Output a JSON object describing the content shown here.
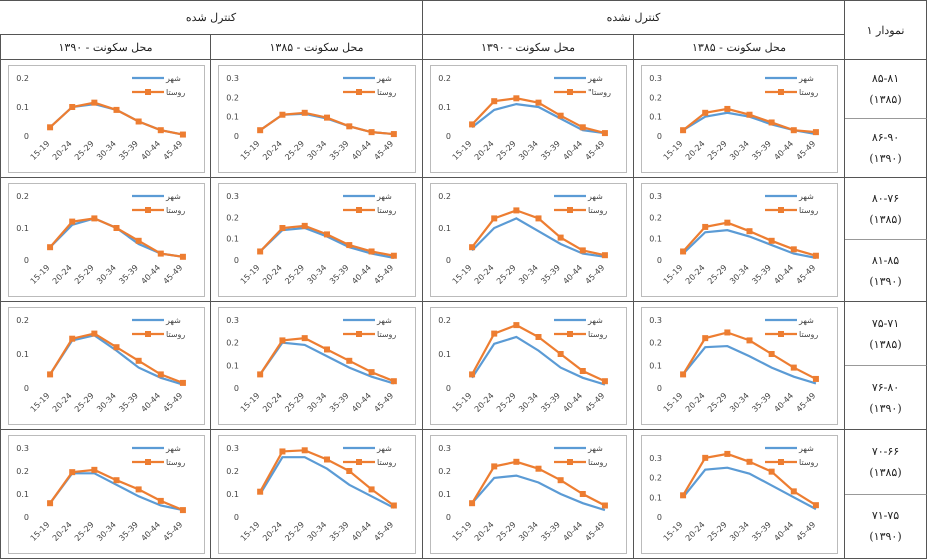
{
  "table": {
    "corner": "نمودار ۱",
    "groups": [
      "کنترل شده",
      "کنترل نشده"
    ],
    "subheaders": [
      "محل سکونت - ۱۳۹۰",
      "محل سکونت - ۱۳۸۵",
      "محل سکونت - ۱۳۹۰",
      "محل سکونت - ۱۳۸۵"
    ],
    "row_labels": [
      [
        "۸۵-۸۱",
        "(۱۳۸۵)"
      ],
      [
        "۸۶-۹۰",
        "(۱۳۹۰)"
      ],
      [
        "۸۰-۷۶",
        "(۱۳۸۵)"
      ],
      [
        "۸۱-۸۵",
        "(۱۳۹۰)"
      ],
      [
        "۷۵-۷۱",
        "(۱۳۸۵)"
      ],
      [
        "۷۶-۸۰",
        "(۱۳۹۰)"
      ],
      [
        "۷۰-۶۶",
        "(۱۳۸۵)"
      ],
      [
        "۷۱-۷۵",
        "(۱۳۹۰)"
      ]
    ]
  },
  "chart_data": [
    {
      "type": "line",
      "categories": [
        "15-19",
        "20-24",
        "25-29",
        "30-34",
        "35-39",
        "40-44",
        "45-49"
      ],
      "ylim": [
        0,
        0.2
      ],
      "yticks": [
        0,
        0.1,
        0.2
      ],
      "series": [
        {
          "name": "شهر",
          "color": "#5b9bd5",
          "values": [
            0.03,
            0.1,
            0.11,
            0.09,
            0.05,
            0.02,
            0.005
          ]
        },
        {
          "name": "روستا",
          "color": "#ed7d31",
          "marker": "square",
          "values": [
            0.03,
            0.1,
            0.115,
            0.09,
            0.05,
            0.02,
            0.005
          ]
        }
      ]
    },
    {
      "type": "line",
      "categories": [
        "15-19",
        "20-24",
        "25-29",
        "30-34",
        "35-39",
        "40-44",
        "45-49"
      ],
      "ylim": [
        0,
        0.3
      ],
      "yticks": [
        0,
        0.1,
        0.2,
        0.3
      ],
      "series": [
        {
          "name": "شهر",
          "color": "#5b9bd5",
          "values": [
            0.03,
            0.11,
            0.115,
            0.09,
            0.05,
            0.02,
            0.01
          ]
        },
        {
          "name": "روستا",
          "color": "#ed7d31",
          "marker": "square",
          "values": [
            0.03,
            0.11,
            0.12,
            0.095,
            0.05,
            0.02,
            0.01
          ]
        }
      ]
    },
    {
      "type": "line",
      "categories": [
        "15-19",
        "20-24",
        "25-29",
        "30-34",
        "35-39",
        "40-44",
        "45-49"
      ],
      "ylim": [
        0,
        0.2
      ],
      "yticks": [
        0,
        0.1,
        0.2
      ],
      "series": [
        {
          "name": "شهر",
          "color": "#5b9bd5",
          "values": [
            0.03,
            0.09,
            0.11,
            0.1,
            0.06,
            0.02,
            0.01
          ]
        },
        {
          "name": "روستا\"",
          "color": "#ed7d31",
          "marker": "square",
          "values": [
            0.04,
            0.12,
            0.13,
            0.115,
            0.07,
            0.03,
            0.01
          ]
        }
      ]
    },
    {
      "type": "line",
      "categories": [
        "15-19",
        "20-24",
        "25-29",
        "30-34",
        "35-39",
        "40-44",
        "45-49"
      ],
      "ylim": [
        0,
        0.3
      ],
      "yticks": [
        0,
        0.1,
        0.2,
        0.3
      ],
      "series": [
        {
          "name": "شهر",
          "color": "#5b9bd5",
          "values": [
            0.03,
            0.1,
            0.12,
            0.1,
            0.06,
            0.03,
            0.01
          ]
        },
        {
          "name": "روستا",
          "color": "#ed7d31",
          "marker": "square",
          "values": [
            0.03,
            0.12,
            0.14,
            0.11,
            0.07,
            0.03,
            0.02
          ]
        }
      ]
    },
    {
      "type": "line",
      "categories": [
        "15-19",
        "20-24",
        "25-29",
        "30-34",
        "35-39",
        "40-44",
        "45-49"
      ],
      "ylim": [
        0,
        0.2
      ],
      "yticks": [
        0,
        0.1,
        0.2
      ],
      "series": [
        {
          "name": "شهر",
          "color": "#5b9bd5",
          "values": [
            0.04,
            0.11,
            0.13,
            0.1,
            0.05,
            0.02,
            0.01
          ]
        },
        {
          "name": "روستا",
          "color": "#ed7d31",
          "marker": "square",
          "values": [
            0.04,
            0.12,
            0.13,
            0.1,
            0.06,
            0.02,
            0.01
          ]
        }
      ]
    },
    {
      "type": "line",
      "categories": [
        "15-19",
        "20-24",
        "25-29",
        "30-34",
        "35-39",
        "40-44",
        "45-49"
      ],
      "ylim": [
        0,
        0.3
      ],
      "yticks": [
        0,
        0.1,
        0.2,
        0.3
      ],
      "series": [
        {
          "name": "شهر",
          "color": "#5b9bd5",
          "values": [
            0.04,
            0.14,
            0.15,
            0.11,
            0.06,
            0.03,
            0.01
          ]
        },
        {
          "name": "روستا",
          "color": "#ed7d31",
          "marker": "square",
          "values": [
            0.04,
            0.15,
            0.16,
            0.12,
            0.07,
            0.04,
            0.02
          ]
        }
      ]
    },
    {
      "type": "line",
      "categories": [
        "15-19",
        "20-24",
        "25-29",
        "30-34",
        "35-39",
        "40-44",
        "45-49"
      ],
      "ylim": [
        0,
        0.2
      ],
      "yticks": [
        0,
        0.1,
        0.2
      ],
      "series": [
        {
          "name": "شهر",
          "color": "#5b9bd5",
          "values": [
            0.03,
            0.1,
            0.13,
            0.09,
            0.05,
            0.02,
            0.01
          ]
        },
        {
          "name": "روستا",
          "color": "#ed7d31",
          "marker": "square",
          "values": [
            0.04,
            0.13,
            0.155,
            0.13,
            0.07,
            0.03,
            0.015
          ]
        }
      ]
    },
    {
      "type": "line",
      "categories": [
        "15-19",
        "20-24",
        "25-29",
        "30-34",
        "35-39",
        "40-44",
        "45-49"
      ],
      "ylim": [
        0,
        0.3
      ],
      "yticks": [
        0,
        0.1,
        0.2,
        0.3
      ],
      "series": [
        {
          "name": "شهر",
          "color": "#5b9bd5",
          "values": [
            0.03,
            0.13,
            0.14,
            0.11,
            0.07,
            0.03,
            0.01
          ]
        },
        {
          "name": "روستا",
          "color": "#ed7d31",
          "marker": "square",
          "values": [
            0.04,
            0.155,
            0.175,
            0.135,
            0.09,
            0.05,
            0.02
          ]
        }
      ]
    },
    {
      "type": "line",
      "categories": [
        "15-19",
        "20-24",
        "25-29",
        "30-34",
        "35-39",
        "40-44",
        "45-49"
      ],
      "ylim": [
        0,
        0.2
      ],
      "yticks": [
        0,
        0.1,
        0.2
      ],
      "series": [
        {
          "name": "شهر",
          "color": "#5b9bd5",
          "values": [
            0.04,
            0.14,
            0.155,
            0.11,
            0.06,
            0.03,
            0.01
          ]
        },
        {
          "name": "روستا",
          "color": "#ed7d31",
          "marker": "square",
          "values": [
            0.04,
            0.145,
            0.16,
            0.12,
            0.08,
            0.04,
            0.015
          ]
        }
      ]
    },
    {
      "type": "line",
      "categories": [
        "15-19",
        "20-24",
        "25-29",
        "30-34",
        "35-39",
        "40-44",
        "45-49"
      ],
      "ylim": [
        0,
        0.3
      ],
      "yticks": [
        0,
        0.1,
        0.2,
        0.3
      ],
      "series": [
        {
          "name": "شهر",
          "color": "#5b9bd5",
          "values": [
            0.06,
            0.2,
            0.19,
            0.14,
            0.09,
            0.05,
            0.02
          ]
        },
        {
          "name": "روستا",
          "color": "#ed7d31",
          "marker": "square",
          "values": [
            0.06,
            0.21,
            0.22,
            0.17,
            0.12,
            0.07,
            0.03
          ]
        }
      ]
    },
    {
      "type": "line",
      "categories": [
        "15-19",
        "20-24",
        "25-29",
        "30-34",
        "35-39",
        "40-44",
        "45-49"
      ],
      "ylim": [
        0,
        0.2
      ],
      "yticks": [
        0,
        0.1,
        0.2
      ],
      "series": [
        {
          "name": "شهر",
          "color": "#5b9bd5",
          "values": [
            0.03,
            0.13,
            0.15,
            0.11,
            0.06,
            0.03,
            0.01
          ]
        },
        {
          "name": "روستا",
          "color": "#ed7d31",
          "marker": "square",
          "values": [
            0.04,
            0.16,
            0.185,
            0.15,
            0.1,
            0.05,
            0.02
          ]
        }
      ]
    },
    {
      "type": "line",
      "categories": [
        "15-19",
        "20-24",
        "25-29",
        "30-34",
        "35-39",
        "40-44",
        "45-49"
      ],
      "ylim": [
        0,
        0.3
      ],
      "yticks": [
        0,
        0.1,
        0.2,
        0.3
      ],
      "series": [
        {
          "name": "شهر",
          "color": "#5b9bd5",
          "values": [
            0.06,
            0.18,
            0.185,
            0.14,
            0.09,
            0.05,
            0.02
          ]
        },
        {
          "name": "روستا",
          "color": "#ed7d31",
          "marker": "square",
          "values": [
            0.06,
            0.22,
            0.245,
            0.21,
            0.15,
            0.09,
            0.04
          ]
        }
      ]
    },
    {
      "type": "line",
      "categories": [
        "15-19",
        "20-24",
        "25-29",
        "30-34",
        "35-39",
        "40-44",
        "45-49"
      ],
      "ylim": [
        0,
        0.3
      ],
      "yticks": [
        0,
        0.1,
        0.2,
        0.3
      ],
      "series": [
        {
          "name": "شهر",
          "color": "#5b9bd5",
          "values": [
            0.06,
            0.19,
            0.19,
            0.14,
            0.09,
            0.05,
            0.03
          ]
        },
        {
          "name": "روستا",
          "color": "#ed7d31",
          "marker": "square",
          "values": [
            0.06,
            0.195,
            0.205,
            0.16,
            0.12,
            0.07,
            0.03
          ]
        }
      ]
    },
    {
      "type": "line",
      "categories": [
        "15-19",
        "20-24",
        "25-29",
        "30-34",
        "35-39",
        "40-44",
        "45-49"
      ],
      "ylim": [
        0,
        0.3
      ],
      "yticks": [
        0,
        0.1,
        0.2,
        0.3
      ],
      "series": [
        {
          "name": "شهر",
          "color": "#5b9bd5",
          "values": [
            0.1,
            0.26,
            0.26,
            0.21,
            0.14,
            0.09,
            0.04
          ]
        },
        {
          "name": "روستا",
          "color": "#ed7d31",
          "marker": "square",
          "values": [
            0.11,
            0.285,
            0.29,
            0.25,
            0.2,
            0.12,
            0.05
          ]
        }
      ]
    },
    {
      "type": "line",
      "categories": [
        "15-19",
        "20-24",
        "25-29",
        "30-34",
        "35-39",
        "40-44",
        "45-49"
      ],
      "ylim": [
        0,
        0.3
      ],
      "yticks": [
        0,
        0.1,
        0.2,
        0.3
      ],
      "series": [
        {
          "name": "شهر",
          "color": "#5b9bd5",
          "values": [
            0.06,
            0.17,
            0.18,
            0.15,
            0.1,
            0.06,
            0.03
          ]
        },
        {
          "name": "روستا",
          "color": "#ed7d31",
          "marker": "square",
          "values": [
            0.06,
            0.22,
            0.24,
            0.21,
            0.16,
            0.1,
            0.05
          ]
        }
      ]
    },
    {
      "type": "line",
      "categories": [
        "15-19",
        "20-24",
        "25-29",
        "30-34",
        "35-39",
        "40-44",
        "45-49"
      ],
      "ylim": [
        0,
        0.35
      ],
      "yticks": [
        0,
        0.1,
        0.2,
        0.3
      ],
      "series": [
        {
          "name": "شهر",
          "color": "#5b9bd5",
          "values": [
            0.1,
            0.24,
            0.25,
            0.22,
            0.16,
            0.1,
            0.04
          ]
        },
        {
          "name": "روستا",
          "color": "#ed7d31",
          "marker": "square",
          "values": [
            0.11,
            0.3,
            0.32,
            0.28,
            0.23,
            0.13,
            0.06
          ]
        }
      ]
    }
  ]
}
